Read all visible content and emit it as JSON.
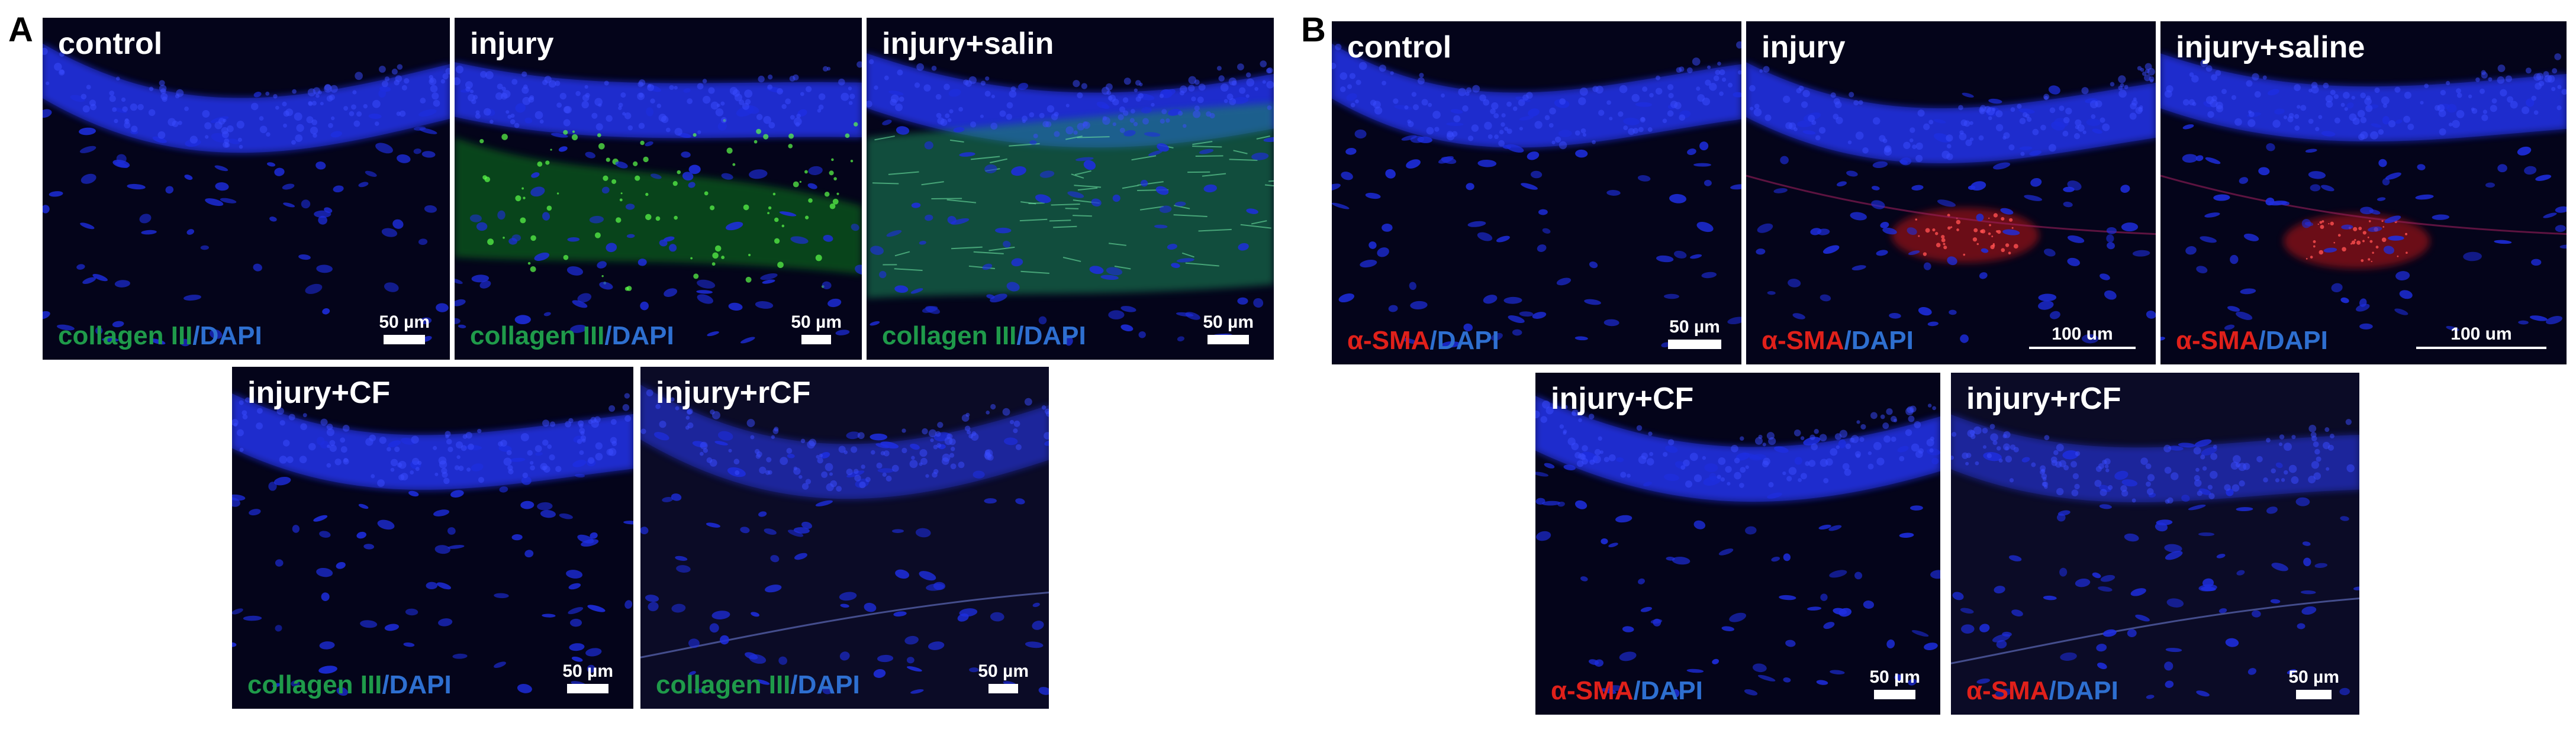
{
  "figure": {
    "section_a": {
      "label": "A",
      "panels": [
        {
          "title": "control",
          "marker": "collagen III",
          "marker_color": "#1f9a4a",
          "dapi": "DAPI",
          "dapi_color": "#2e6fd0",
          "scale": "50 µm",
          "signal": "none"
        },
        {
          "title": "injury",
          "marker": "collagen III",
          "marker_color": "#1f9a4a",
          "dapi": "DAPI",
          "dapi_color": "#2e6fd0",
          "scale": "50 µm",
          "signal": "green-patchy"
        },
        {
          "title": "injury+salin",
          "marker": "collagen III",
          "marker_color": "#1f9a4a",
          "dapi": "DAPI",
          "dapi_color": "#2e6fd0",
          "scale": "50 µm",
          "signal": "green-diffuse"
        },
        {
          "title": "injury+CF",
          "marker": "collagen III",
          "marker_color": "#1f9a4a",
          "dapi": "DAPI",
          "dapi_color": "#2e6fd0",
          "scale": "50 µm",
          "signal": "none"
        },
        {
          "title": "injury+rCF",
          "marker": "collagen III",
          "marker_color": "#1f9a4a",
          "dapi": "DAPI",
          "dapi_color": "#2e6fd0",
          "scale": "50 µm",
          "signal": "faint"
        }
      ]
    },
    "section_b": {
      "label": "B",
      "panels": [
        {
          "title": "control",
          "marker": "α-SMA",
          "marker_color": "#e0201a",
          "dapi": "DAPI",
          "dapi_color": "#2e6fd0",
          "scale": "50 µm",
          "signal": "none"
        },
        {
          "title": "injury",
          "marker": "α-SMA",
          "marker_color": "#e0201a",
          "dapi": "DAPI",
          "dapi_color": "#2e6fd0",
          "scale": "100 um",
          "signal": "red-spot"
        },
        {
          "title": "injury+saline",
          "marker": "α-SMA",
          "marker_color": "#e0201a",
          "dapi": "DAPI",
          "dapi_color": "#2e6fd0",
          "scale": "100 um",
          "signal": "red-spot"
        },
        {
          "title": "injury+CF",
          "marker": "α-SMA",
          "marker_color": "#e0201a",
          "dapi": "DAPI",
          "dapi_color": "#2e6fd0",
          "scale": "50 µm",
          "signal": "none"
        },
        {
          "title": "injury+rCF",
          "marker": "α-SMA",
          "marker_color": "#e0201a",
          "dapi": "DAPI",
          "dapi_color": "#2e6fd0",
          "scale": "50 µm",
          "signal": "faint"
        }
      ]
    }
  }
}
